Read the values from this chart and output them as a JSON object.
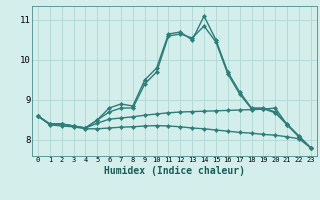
{
  "title": "",
  "xlabel": "Humidex (Indice chaleur)",
  "x_values": [
    0,
    1,
    2,
    3,
    4,
    5,
    6,
    7,
    8,
    9,
    10,
    11,
    12,
    13,
    14,
    15,
    16,
    17,
    18,
    19,
    20,
    21,
    22,
    23
  ],
  "line1": [
    8.6,
    8.4,
    8.4,
    8.35,
    8.3,
    8.5,
    8.8,
    8.9,
    8.85,
    9.5,
    9.8,
    10.65,
    10.7,
    10.5,
    11.1,
    10.5,
    9.7,
    9.2,
    8.8,
    8.8,
    8.7,
    8.4,
    8.1,
    7.8
  ],
  "line2": [
    8.6,
    8.4,
    8.4,
    8.35,
    8.3,
    8.5,
    8.7,
    8.8,
    8.8,
    9.4,
    9.7,
    10.6,
    10.65,
    10.55,
    10.85,
    10.45,
    9.65,
    9.15,
    8.78,
    8.78,
    8.68,
    8.38,
    8.08,
    7.8
  ],
  "line3": [
    8.6,
    8.4,
    8.4,
    8.35,
    8.3,
    8.42,
    8.52,
    8.55,
    8.58,
    8.62,
    8.65,
    8.68,
    8.7,
    8.71,
    8.72,
    8.73,
    8.74,
    8.75,
    8.76,
    8.77,
    8.8,
    8.38,
    8.08,
    7.8
  ],
  "line4": [
    8.6,
    8.38,
    8.35,
    8.33,
    8.28,
    8.28,
    8.3,
    8.32,
    8.33,
    8.35,
    8.36,
    8.35,
    8.33,
    8.3,
    8.28,
    8.25,
    8.22,
    8.19,
    8.17,
    8.14,
    8.12,
    8.08,
    8.03,
    7.8
  ],
  "line_color": "#2d7d78",
  "bg_color": "#d4eeec",
  "grid_color": "#b0d8d5",
  "ylim": [
    7.6,
    11.35
  ],
  "yticks": [
    8,
    9,
    10,
    11
  ],
  "marker": "D",
  "marker_size": 2.2,
  "line_width": 1.0
}
